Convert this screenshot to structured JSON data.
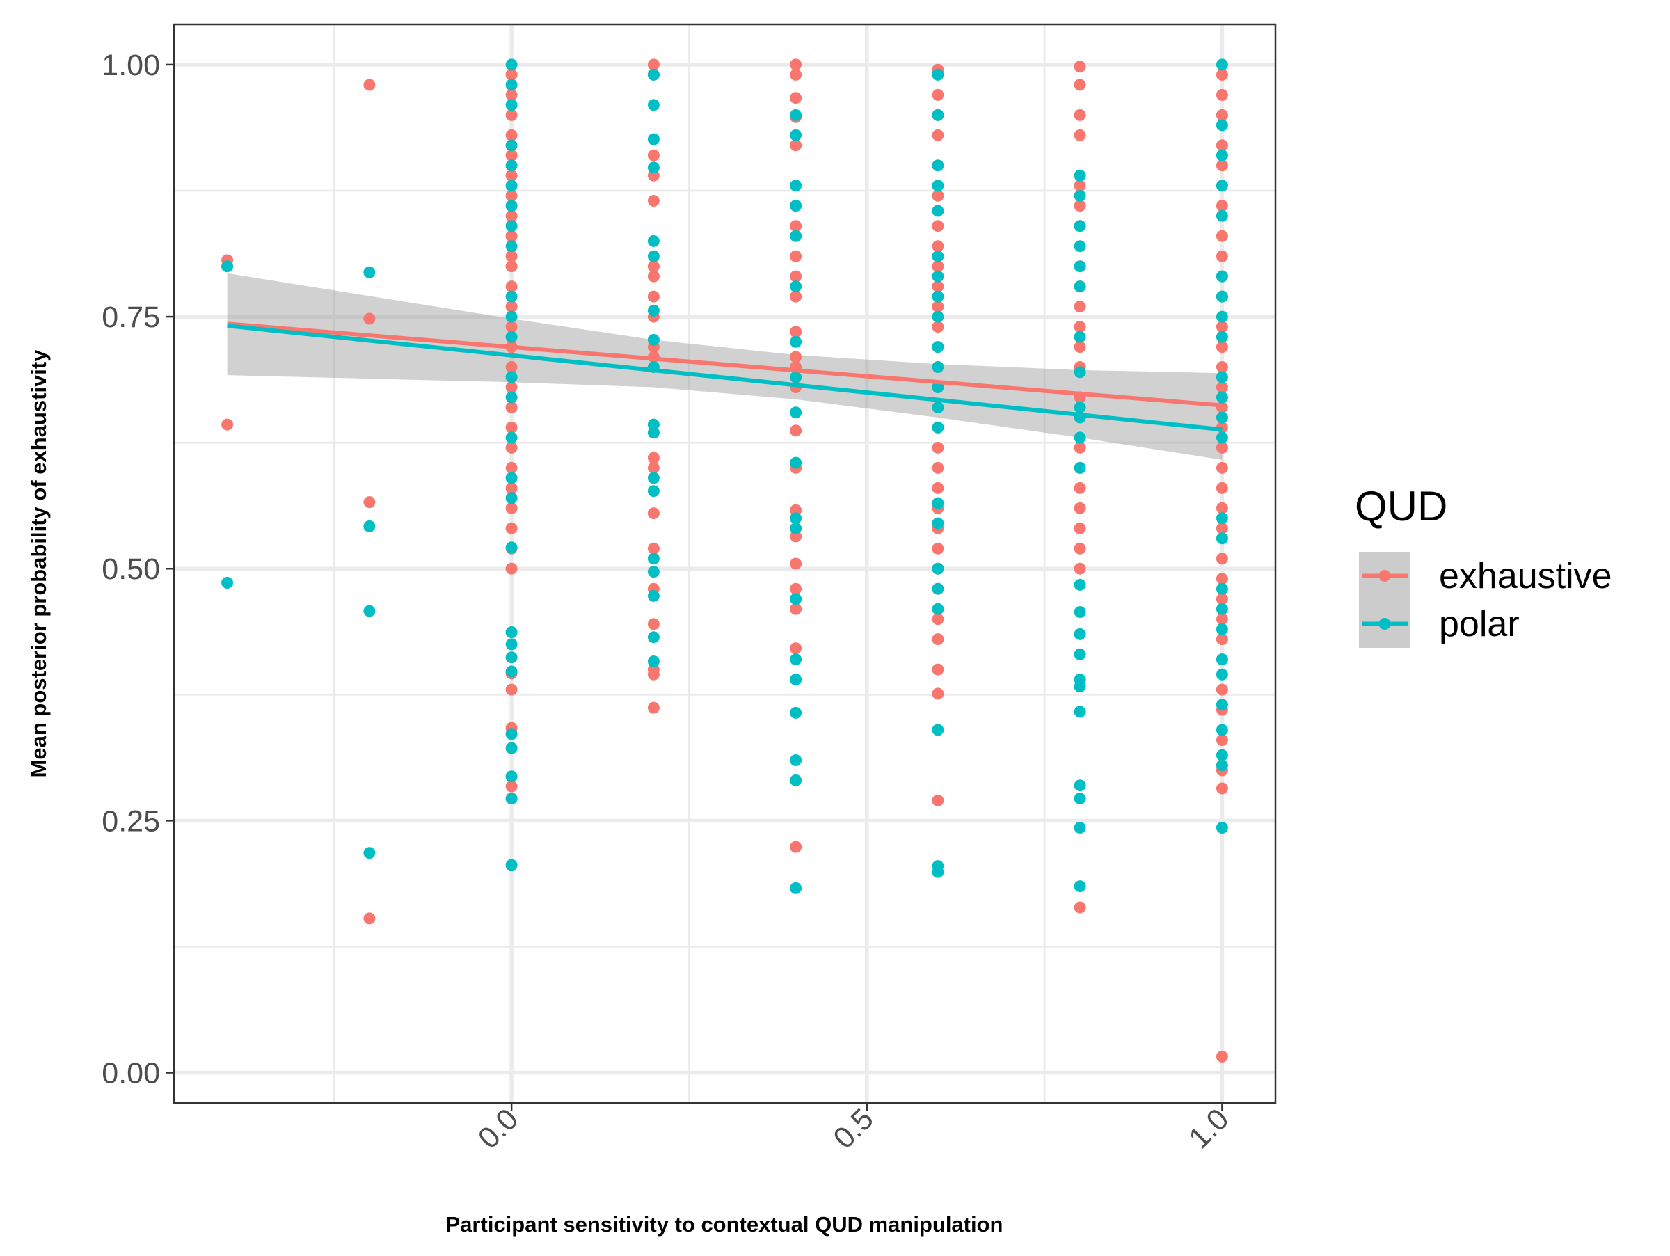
{
  "chart_data": {
    "type": "scatter",
    "xlabel": "Participant sensitivity to contextual QUD manipulation",
    "ylabel": "Mean posterior probability of exhaustivity",
    "xlim": [
      -0.475,
      1.075
    ],
    "ylim": [
      -0.03,
      1.04
    ],
    "x_ticks": [
      0.0,
      0.5,
      1.0
    ],
    "x_tick_labels": [
      "0.0",
      "0.5",
      "1.0"
    ],
    "x_minor_ticks": [
      -0.25,
      0.25,
      0.75
    ],
    "y_ticks": [
      0.0,
      0.25,
      0.5,
      0.75,
      1.0
    ],
    "y_tick_labels": [
      "0.00",
      "0.25",
      "0.50",
      "0.75",
      "1.00"
    ],
    "y_minor_ticks": [
      0.125,
      0.375,
      0.625,
      0.875
    ],
    "grid": true,
    "legend": {
      "title": "QUD",
      "position": "right"
    },
    "series": [
      {
        "name": "exhaustive",
        "color": "#F8766D",
        "points": [
          [
            -0.4,
            0.806
          ],
          [
            -0.4,
            0.643
          ],
          [
            -0.2,
            0.98
          ],
          [
            -0.2,
            0.748
          ],
          [
            -0.2,
            0.566
          ],
          [
            -0.2,
            0.153
          ],
          [
            0.0,
            0.99
          ],
          [
            0.0,
            0.97
          ],
          [
            0.0,
            0.95
          ],
          [
            0.0,
            0.93
          ],
          [
            0.0,
            0.91
          ],
          [
            0.0,
            0.89
          ],
          [
            0.0,
            0.87
          ],
          [
            0.0,
            0.85
          ],
          [
            0.0,
            0.83
          ],
          [
            0.0,
            0.81
          ],
          [
            0.0,
            0.8
          ],
          [
            0.0,
            0.78
          ],
          [
            0.0,
            0.76
          ],
          [
            0.0,
            0.74
          ],
          [
            0.0,
            0.72
          ],
          [
            0.0,
            0.7
          ],
          [
            0.0,
            0.68
          ],
          [
            0.0,
            0.66
          ],
          [
            0.0,
            0.64
          ],
          [
            0.0,
            0.62
          ],
          [
            0.0,
            0.6
          ],
          [
            0.0,
            0.58
          ],
          [
            0.0,
            0.56
          ],
          [
            0.0,
            0.54
          ],
          [
            0.0,
            0.52
          ],
          [
            0.0,
            0.5
          ],
          [
            0.0,
            0.396
          ],
          [
            0.0,
            0.38
          ],
          [
            0.0,
            0.342
          ],
          [
            0.0,
            0.284
          ],
          [
            0.2,
            1.0
          ],
          [
            0.2,
            0.99
          ],
          [
            0.2,
            0.91
          ],
          [
            0.2,
            0.89
          ],
          [
            0.2,
            0.865
          ],
          [
            0.2,
            0.8
          ],
          [
            0.2,
            0.79
          ],
          [
            0.2,
            0.77
          ],
          [
            0.2,
            0.75
          ],
          [
            0.2,
            0.72
          ],
          [
            0.2,
            0.71
          ],
          [
            0.2,
            0.61
          ],
          [
            0.2,
            0.6
          ],
          [
            0.2,
            0.555
          ],
          [
            0.2,
            0.52
          ],
          [
            0.2,
            0.48
          ],
          [
            0.2,
            0.445
          ],
          [
            0.2,
            0.4
          ],
          [
            0.2,
            0.395
          ],
          [
            0.2,
            0.362
          ],
          [
            0.4,
            1.0
          ],
          [
            0.4,
            0.99
          ],
          [
            0.4,
            0.967
          ],
          [
            0.4,
            0.948
          ],
          [
            0.4,
            0.92
          ],
          [
            0.4,
            0.86
          ],
          [
            0.4,
            0.84
          ],
          [
            0.4,
            0.81
          ],
          [
            0.4,
            0.79
          ],
          [
            0.4,
            0.77
          ],
          [
            0.4,
            0.735
          ],
          [
            0.4,
            0.71
          ],
          [
            0.4,
            0.7
          ],
          [
            0.4,
            0.68
          ],
          [
            0.4,
            0.637
          ],
          [
            0.4,
            0.6
          ],
          [
            0.4,
            0.558
          ],
          [
            0.4,
            0.532
          ],
          [
            0.4,
            0.505
          ],
          [
            0.4,
            0.48
          ],
          [
            0.4,
            0.46
          ],
          [
            0.4,
            0.421
          ],
          [
            0.4,
            0.224
          ],
          [
            0.6,
            0.995
          ],
          [
            0.6,
            0.97
          ],
          [
            0.6,
            0.95
          ],
          [
            0.6,
            0.93
          ],
          [
            0.6,
            0.87
          ],
          [
            0.6,
            0.84
          ],
          [
            0.6,
            0.82
          ],
          [
            0.6,
            0.8
          ],
          [
            0.6,
            0.78
          ],
          [
            0.6,
            0.76
          ],
          [
            0.6,
            0.74
          ],
          [
            0.6,
            0.72
          ],
          [
            0.6,
            0.7
          ],
          [
            0.6,
            0.68
          ],
          [
            0.6,
            0.66
          ],
          [
            0.6,
            0.64
          ],
          [
            0.6,
            0.62
          ],
          [
            0.6,
            0.6
          ],
          [
            0.6,
            0.58
          ],
          [
            0.6,
            0.56
          ],
          [
            0.6,
            0.54
          ],
          [
            0.6,
            0.52
          ],
          [
            0.6,
            0.5
          ],
          [
            0.6,
            0.48
          ],
          [
            0.6,
            0.45
          ],
          [
            0.6,
            0.43
          ],
          [
            0.6,
            0.4
          ],
          [
            0.6,
            0.376
          ],
          [
            0.6,
            0.27
          ],
          [
            0.8,
            0.998
          ],
          [
            0.8,
            0.98
          ],
          [
            0.8,
            0.95
          ],
          [
            0.8,
            0.93
          ],
          [
            0.8,
            0.88
          ],
          [
            0.8,
            0.86
          ],
          [
            0.8,
            0.84
          ],
          [
            0.8,
            0.8
          ],
          [
            0.8,
            0.78
          ],
          [
            0.8,
            0.76
          ],
          [
            0.8,
            0.74
          ],
          [
            0.8,
            0.72
          ],
          [
            0.8,
            0.7
          ],
          [
            0.8,
            0.67
          ],
          [
            0.8,
            0.62
          ],
          [
            0.8,
            0.6
          ],
          [
            0.8,
            0.58
          ],
          [
            0.8,
            0.56
          ],
          [
            0.8,
            0.54
          ],
          [
            0.8,
            0.52
          ],
          [
            0.8,
            0.5
          ],
          [
            0.8,
            0.164
          ],
          [
            1.0,
            0.99
          ],
          [
            1.0,
            0.97
          ],
          [
            1.0,
            0.95
          ],
          [
            1.0,
            0.92
          ],
          [
            1.0,
            0.9
          ],
          [
            1.0,
            0.88
          ],
          [
            1.0,
            0.86
          ],
          [
            1.0,
            0.83
          ],
          [
            1.0,
            0.81
          ],
          [
            1.0,
            0.79
          ],
          [
            1.0,
            0.77
          ],
          [
            1.0,
            0.74
          ],
          [
            1.0,
            0.72
          ],
          [
            1.0,
            0.7
          ],
          [
            1.0,
            0.68
          ],
          [
            1.0,
            0.66
          ],
          [
            1.0,
            0.64
          ],
          [
            1.0,
            0.62
          ],
          [
            1.0,
            0.6
          ],
          [
            1.0,
            0.58
          ],
          [
            1.0,
            0.56
          ],
          [
            1.0,
            0.54
          ],
          [
            1.0,
            0.51
          ],
          [
            1.0,
            0.49
          ],
          [
            1.0,
            0.47
          ],
          [
            1.0,
            0.45
          ],
          [
            1.0,
            0.43
          ],
          [
            1.0,
            0.41
          ],
          [
            1.0,
            0.38
          ],
          [
            1.0,
            0.36
          ],
          [
            1.0,
            0.33
          ],
          [
            1.0,
            0.3
          ],
          [
            1.0,
            0.282
          ],
          [
            1.0,
            0.016
          ]
        ],
        "trend": {
          "x": [
            -0.4,
            1.0
          ],
          "y": [
            0.743,
            0.662
          ]
        }
      },
      {
        "name": "polar",
        "color": "#00BFC4",
        "points": [
          [
            -0.4,
            0.8
          ],
          [
            -0.4,
            0.486
          ],
          [
            -0.2,
            0.794
          ],
          [
            -0.2,
            0.542
          ],
          [
            -0.2,
            0.458
          ],
          [
            -0.2,
            0.218
          ],
          [
            0.0,
            1.0
          ],
          [
            0.0,
            0.98
          ],
          [
            0.0,
            0.96
          ],
          [
            0.0,
            0.92
          ],
          [
            0.0,
            0.9
          ],
          [
            0.0,
            0.88
          ],
          [
            0.0,
            0.86
          ],
          [
            0.0,
            0.84
          ],
          [
            0.0,
            0.82
          ],
          [
            0.0,
            0.77
          ],
          [
            0.0,
            0.75
          ],
          [
            0.0,
            0.73
          ],
          [
            0.0,
            0.69
          ],
          [
            0.0,
            0.67
          ],
          [
            0.0,
            0.63
          ],
          [
            0.0,
            0.59
          ],
          [
            0.0,
            0.57
          ],
          [
            0.0,
            0.521
          ],
          [
            0.0,
            0.437
          ],
          [
            0.0,
            0.425
          ],
          [
            0.0,
            0.412
          ],
          [
            0.0,
            0.398
          ],
          [
            0.0,
            0.336
          ],
          [
            0.0,
            0.322
          ],
          [
            0.0,
            0.294
          ],
          [
            0.0,
            0.272
          ],
          [
            0.0,
            0.206
          ],
          [
            0.2,
            0.99
          ],
          [
            0.2,
            0.96
          ],
          [
            0.2,
            0.926
          ],
          [
            0.2,
            0.898
          ],
          [
            0.2,
            0.825
          ],
          [
            0.2,
            0.81
          ],
          [
            0.2,
            0.756
          ],
          [
            0.2,
            0.727
          ],
          [
            0.2,
            0.7
          ],
          [
            0.2,
            0.643
          ],
          [
            0.2,
            0.635
          ],
          [
            0.2,
            0.59
          ],
          [
            0.2,
            0.577
          ],
          [
            0.2,
            0.51
          ],
          [
            0.2,
            0.497
          ],
          [
            0.2,
            0.473
          ],
          [
            0.2,
            0.432
          ],
          [
            0.2,
            0.408
          ],
          [
            0.4,
            0.95
          ],
          [
            0.4,
            0.93
          ],
          [
            0.4,
            0.88
          ],
          [
            0.4,
            0.86
          ],
          [
            0.4,
            0.83
          ],
          [
            0.4,
            0.78
          ],
          [
            0.4,
            0.725
          ],
          [
            0.4,
            0.69
          ],
          [
            0.4,
            0.655
          ],
          [
            0.4,
            0.605
          ],
          [
            0.4,
            0.55
          ],
          [
            0.4,
            0.54
          ],
          [
            0.4,
            0.47
          ],
          [
            0.4,
            0.41
          ],
          [
            0.4,
            0.39
          ],
          [
            0.4,
            0.357
          ],
          [
            0.4,
            0.31
          ],
          [
            0.4,
            0.29
          ],
          [
            0.4,
            0.183
          ],
          [
            0.6,
            0.99
          ],
          [
            0.6,
            0.95
          ],
          [
            0.6,
            0.9
          ],
          [
            0.6,
            0.88
          ],
          [
            0.6,
            0.855
          ],
          [
            0.6,
            0.81
          ],
          [
            0.6,
            0.79
          ],
          [
            0.6,
            0.77
          ],
          [
            0.6,
            0.75
          ],
          [
            0.6,
            0.72
          ],
          [
            0.6,
            0.7
          ],
          [
            0.6,
            0.68
          ],
          [
            0.6,
            0.66
          ],
          [
            0.6,
            0.64
          ],
          [
            0.6,
            0.565
          ],
          [
            0.6,
            0.545
          ],
          [
            0.6,
            0.5
          ],
          [
            0.6,
            0.48
          ],
          [
            0.6,
            0.46
          ],
          [
            0.6,
            0.34
          ],
          [
            0.6,
            0.205
          ],
          [
            0.6,
            0.199
          ],
          [
            0.8,
            0.89
          ],
          [
            0.8,
            0.87
          ],
          [
            0.8,
            0.84
          ],
          [
            0.8,
            0.82
          ],
          [
            0.8,
            0.8
          ],
          [
            0.8,
            0.78
          ],
          [
            0.8,
            0.73
          ],
          [
            0.8,
            0.695
          ],
          [
            0.8,
            0.66
          ],
          [
            0.8,
            0.65
          ],
          [
            0.8,
            0.63
          ],
          [
            0.8,
            0.6
          ],
          [
            0.8,
            0.484
          ],
          [
            0.8,
            0.457
          ],
          [
            0.8,
            0.435
          ],
          [
            0.8,
            0.415
          ],
          [
            0.8,
            0.39
          ],
          [
            0.8,
            0.383
          ],
          [
            0.8,
            0.358
          ],
          [
            0.8,
            0.285
          ],
          [
            0.8,
            0.272
          ],
          [
            0.8,
            0.243
          ],
          [
            0.8,
            0.185
          ],
          [
            1.0,
            1.0
          ],
          [
            1.0,
            0.94
          ],
          [
            1.0,
            0.91
          ],
          [
            1.0,
            0.88
          ],
          [
            1.0,
            0.85
          ],
          [
            1.0,
            0.79
          ],
          [
            1.0,
            0.77
          ],
          [
            1.0,
            0.75
          ],
          [
            1.0,
            0.73
          ],
          [
            1.0,
            0.69
          ],
          [
            1.0,
            0.67
          ],
          [
            1.0,
            0.65
          ],
          [
            1.0,
            0.63
          ],
          [
            1.0,
            0.55
          ],
          [
            1.0,
            0.53
          ],
          [
            1.0,
            0.48
          ],
          [
            1.0,
            0.46
          ],
          [
            1.0,
            0.44
          ],
          [
            1.0,
            0.41
          ],
          [
            1.0,
            0.395
          ],
          [
            1.0,
            0.365
          ],
          [
            1.0,
            0.34
          ],
          [
            1.0,
            0.315
          ],
          [
            1.0,
            0.305
          ],
          [
            1.0,
            0.243
          ]
        ],
        "trend": {
          "x": [
            -0.4,
            1.0
          ],
          "y": [
            0.741,
            0.638
          ]
        }
      }
    ],
    "confidence_band": {
      "x": [
        -0.4,
        0.0,
        0.2,
        0.4,
        0.6,
        0.8,
        1.0
      ],
      "upper": [
        0.793,
        0.748,
        0.727,
        0.712,
        0.703,
        0.697,
        0.694
      ],
      "lower": [
        0.692,
        0.685,
        0.68,
        0.668,
        0.65,
        0.63,
        0.608
      ]
    }
  }
}
